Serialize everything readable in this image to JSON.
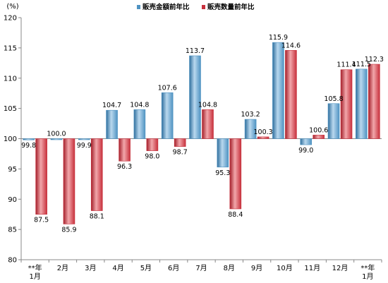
{
  "chart_data": {
    "type": "bar",
    "unit_label": "(%)",
    "categories": [
      [
        "**年",
        "1月"
      ],
      [
        "2月"
      ],
      [
        "3月"
      ],
      [
        "4月"
      ],
      [
        "5月"
      ],
      [
        "6月"
      ],
      [
        "7月"
      ],
      [
        "8月"
      ],
      [
        "9月"
      ],
      [
        "10月"
      ],
      [
        "11月"
      ],
      [
        "12月"
      ],
      [
        "**年",
        "1月"
      ]
    ],
    "baseline": 100,
    "ylim": [
      80,
      120
    ],
    "yticks": [
      80,
      85,
      90,
      95,
      100,
      105,
      110,
      115,
      120
    ],
    "grid": false,
    "legend_position": "top-center",
    "series": [
      {
        "name": "販売金額前年比",
        "color": "#4f93c2",
        "values": [
          99.8,
          100.0,
          99.9,
          104.7,
          104.8,
          107.6,
          113.7,
          95.3,
          103.2,
          115.9,
          99.0,
          105.8,
          111.5
        ],
        "labels": [
          "99.8",
          "100.0",
          "99.9",
          "104.7",
          "104.8",
          "107.6",
          "113.7",
          "95.3",
          "103.2",
          "115.9",
          "99.0",
          "105.8",
          "111.5"
        ]
      },
      {
        "name": "販売数量前年比",
        "color": "#c7303c",
        "values": [
          87.5,
          85.9,
          88.1,
          96.3,
          98.0,
          98.7,
          104.8,
          88.4,
          100.3,
          114.6,
          100.6,
          111.4,
          112.3
        ],
        "labels": [
          "87.5",
          "85.9",
          "88.1",
          "96.3",
          "98.0",
          "98.7",
          "104.8",
          "88.4",
          "100.3",
          "114.6",
          "100.6",
          "111.4",
          "112.3"
        ]
      }
    ]
  }
}
